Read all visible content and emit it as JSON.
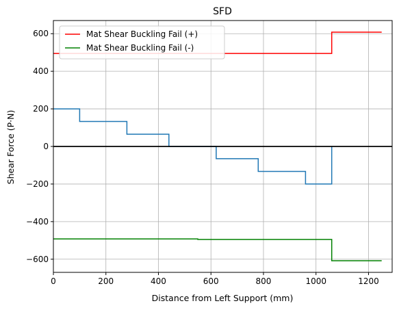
{
  "chart_data": {
    "type": "line",
    "title": "SFD",
    "xlabel": "Distance from Left Support (mm)",
    "ylabel": "Shear Force (P·N)",
    "xlim": [
      0,
      1290
    ],
    "ylim": [
      -670,
      670
    ],
    "xticks": [
      0,
      200,
      400,
      600,
      800,
      1000,
      1200
    ],
    "yticks": [
      -600,
      -400,
      -200,
      0,
      200,
      400,
      600
    ],
    "xtick_labels": [
      "0",
      "200",
      "400",
      "600",
      "800",
      "1000",
      "1200"
    ],
    "ytick_labels": [
      "−600",
      "−400",
      "−200",
      "0",
      "200",
      "400",
      "600"
    ],
    "grid": true,
    "legend_position": "upper-left",
    "zero_line": {
      "y": 0,
      "color": "#000000"
    },
    "series": [
      {
        "name": "Mat Shear Buckling Fail (+)",
        "color": "#ff0000",
        "legend": true,
        "x": [
          0,
          1060,
          1060,
          1250
        ],
        "y": [
          495,
          495,
          608,
          608
        ]
      },
      {
        "name": "Mat Shear Buckling Fail (-)",
        "color": "#008000",
        "legend": true,
        "x": [
          0,
          550,
          550,
          1060,
          1060,
          1250
        ],
        "y": [
          -492,
          -492,
          -495,
          -495,
          -608,
          -608
        ]
      },
      {
        "name": "",
        "color": "#1f77b4",
        "legend": false,
        "x": [
          0,
          100,
          100,
          280,
          280,
          440,
          440,
          620,
          620,
          780,
          780,
          960,
          960,
          1060,
          1060
        ],
        "y": [
          200,
          200,
          133,
          133,
          65,
          65,
          0,
          0,
          -65,
          -65,
          -133,
          -133,
          -200,
          -200,
          0
        ]
      }
    ]
  }
}
